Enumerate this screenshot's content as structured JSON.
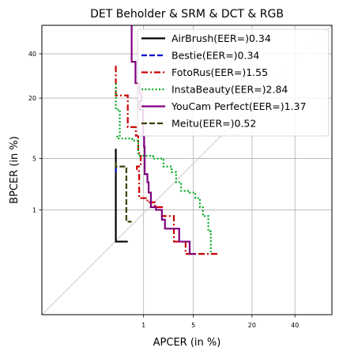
{
  "chart_data": {
    "type": "line",
    "title": "DET Beholder & SRM & DCT & RGB",
    "xlabel": "APCER (in %)",
    "ylabel": "BPCER (in %)",
    "x_scale": "probit",
    "y_scale": "probit",
    "x_ticks": [
      1,
      5,
      20,
      40
    ],
    "y_ticks": [
      1,
      5,
      20,
      40
    ],
    "x_tick_labels": [
      "1",
      "5",
      "20",
      "40"
    ],
    "y_tick_labels": [
      "1",
      "5",
      "20",
      "40"
    ],
    "xlim": [
      0.01,
      60
    ],
    "ylim": [
      0.01,
      55
    ],
    "grid": true,
    "diagonal_reference": true,
    "legend_position": "top-right",
    "series": [
      {
        "name": "AirBrush(EER=)0.34",
        "color": "#000000",
        "dash": "solid",
        "points": [
          [
            0.34,
            6.5
          ],
          [
            0.34,
            0.3
          ],
          [
            0.55,
            0.3
          ]
        ]
      },
      {
        "name": "Bestie(EER=)0.34",
        "color": "#0000cc",
        "dash": "dashed",
        "points": [
          [
            0.34,
            3.8
          ],
          [
            0.34,
            3.4
          ]
        ]
      },
      {
        "name": "FotoRus(EER=)1.55",
        "color": "#cc0000",
        "dash": "dashdot",
        "points": [
          [
            0.34,
            34
          ],
          [
            0.34,
            21
          ],
          [
            0.55,
            21
          ],
          [
            0.55,
            11
          ],
          [
            0.75,
            11
          ],
          [
            0.75,
            9
          ],
          [
            0.82,
            9
          ],
          [
            0.82,
            5.8
          ],
          [
            0.9,
            5.8
          ],
          [
            0.9,
            4
          ],
          [
            0.78,
            4
          ],
          [
            0.78,
            3.5
          ],
          [
            0.85,
            3.5
          ],
          [
            0.85,
            1.5
          ],
          [
            1.15,
            1.5
          ],
          [
            1.15,
            1.3
          ],
          [
            1.5,
            1.3
          ],
          [
            1.5,
            1.1
          ],
          [
            1.9,
            1.1
          ],
          [
            1.9,
            0.8
          ],
          [
            2.8,
            0.8
          ],
          [
            2.8,
            0.3
          ],
          [
            4,
            0.3
          ],
          [
            4,
            0.18
          ],
          [
            9.5,
            0.18
          ]
        ]
      },
      {
        "name": "InstaBeauty(EER=)2.84",
        "color": "#00aa22",
        "dash": "dotted",
        "points": [
          [
            0.34,
            26
          ],
          [
            0.34,
            16
          ],
          [
            0.4,
            16
          ],
          [
            0.4,
            9
          ],
          [
            0.36,
            9
          ],
          [
            0.36,
            8.4
          ],
          [
            0.65,
            8.4
          ],
          [
            0.65,
            8
          ],
          [
            0.82,
            8
          ],
          [
            0.82,
            5.4
          ],
          [
            1.4,
            5.4
          ],
          [
            1.4,
            5
          ],
          [
            2,
            5
          ],
          [
            2,
            4
          ],
          [
            2.6,
            4
          ],
          [
            2.6,
            3.4
          ],
          [
            3,
            3.4
          ],
          [
            3,
            2.5
          ],
          [
            3.5,
            2.5
          ],
          [
            3.5,
            1.9
          ],
          [
            4.5,
            1.9
          ],
          [
            4.5,
            1.8
          ],
          [
            5.3,
            1.8
          ],
          [
            5.3,
            1.5
          ],
          [
            6,
            1.5
          ],
          [
            6,
            1.1
          ],
          [
            6.5,
            1.1
          ],
          [
            6.5,
            0.8
          ],
          [
            7.5,
            0.8
          ],
          [
            7.5,
            0.45
          ],
          [
            8,
            0.45
          ],
          [
            8,
            0.18
          ]
        ]
      },
      {
        "name": "YouCam Perfect(EER=)1.37",
        "color": "#800080",
        "dash": "solid",
        "points": [
          [
            0.64,
            70
          ],
          [
            0.64,
            36
          ],
          [
            0.74,
            36
          ],
          [
            0.74,
            26
          ],
          [
            0.86,
            26
          ],
          [
            0.86,
            22
          ],
          [
            0.92,
            22
          ],
          [
            0.92,
            19
          ],
          [
            0.86,
            19
          ],
          [
            0.86,
            16
          ],
          [
            0.98,
            16
          ],
          [
            0.98,
            9
          ],
          [
            1.02,
            9
          ],
          [
            1.02,
            6.8
          ],
          [
            1.04,
            6.8
          ],
          [
            1.04,
            3.2
          ],
          [
            1.15,
            3.2
          ],
          [
            1.15,
            2.5
          ],
          [
            1.2,
            2.5
          ],
          [
            1.2,
            1.8
          ],
          [
            1.3,
            1.8
          ],
          [
            1.3,
            1.1
          ],
          [
            1.55,
            1.1
          ],
          [
            1.55,
            1
          ],
          [
            1.9,
            1
          ],
          [
            1.9,
            0.7
          ],
          [
            2.1,
            0.7
          ],
          [
            2.1,
            0.5
          ],
          [
            3.3,
            0.5
          ],
          [
            3.3,
            0.3
          ],
          [
            4.5,
            0.3
          ],
          [
            4.5,
            0.18
          ],
          [
            5.4,
            0.18
          ]
        ]
      },
      {
        "name": "Meitu(EER=)0.52",
        "color": "#3d3d00",
        "dash": "dashed",
        "points": [
          [
            0.34,
            4.5
          ],
          [
            0.34,
            4
          ],
          [
            0.52,
            4
          ],
          [
            0.52,
            0.65
          ],
          [
            0.64,
            0.65
          ]
        ]
      }
    ]
  }
}
